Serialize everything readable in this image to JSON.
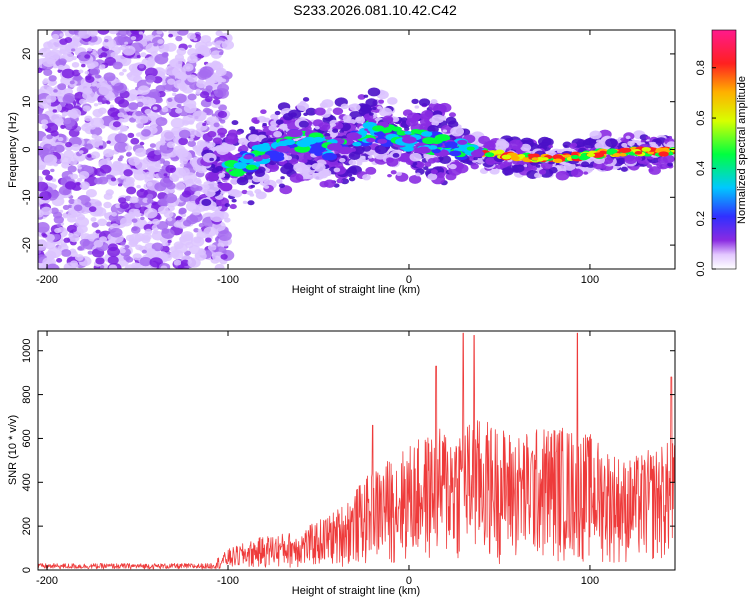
{
  "title": "S233.2026.081.10.42.C42",
  "colors": {
    "snr_line": "#ee3b3b",
    "axis": "#000000",
    "spec_base": "#8a2be2"
  },
  "chart_data": [
    {
      "type": "heatmap",
      "name": "spectrogram",
      "xlabel": "Height of straight line (km)",
      "ylabel": "Frequency (Hz)",
      "xlim": [
        -205,
        147
      ],
      "ylim": [
        -25,
        25
      ],
      "xticks": [
        -200,
        -100,
        0,
        100
      ],
      "yticks": [
        -20,
        -10,
        0,
        10,
        20
      ],
      "ridge": [
        {
          "x": -100,
          "y": -4
        },
        {
          "x": -80,
          "y": -1
        },
        {
          "x": -60,
          "y": 2
        },
        {
          "x": -40,
          "y": 0
        },
        {
          "x": -20,
          "y": 4
        },
        {
          "x": 0,
          "y": 2
        },
        {
          "x": 20,
          "y": 1
        },
        {
          "x": 40,
          "y": -0.5
        },
        {
          "x": 60,
          "y": -1.5
        },
        {
          "x": 80,
          "y": -2
        },
        {
          "x": 100,
          "y": -1
        },
        {
          "x": 120,
          "y": -0.5
        },
        {
          "x": 147,
          "y": -0.5
        }
      ],
      "colorbar": {
        "label": "Normalized spectral amplitude",
        "range": [
          0,
          0.95
        ],
        "ticks": [
          0.0,
          0.2,
          0.4,
          0.6,
          0.8
        ]
      }
    },
    {
      "type": "line",
      "name": "snr",
      "xlabel": "Height of straight line (km)",
      "ylabel": "SNR (10 * v/v)",
      "xlim": [
        -205,
        147
      ],
      "ylim": [
        0,
        1090
      ],
      "xticks": [
        -200,
        -100,
        0,
        100
      ],
      "yticks": [
        0,
        200,
        400,
        600,
        800,
        1000
      ],
      "envelope": [
        {
          "x": -205,
          "y": 15
        },
        {
          "x": -110,
          "y": 15
        },
        {
          "x": -100,
          "y": 80
        },
        {
          "x": -80,
          "y": 130
        },
        {
          "x": -60,
          "y": 150
        },
        {
          "x": -40,
          "y": 230
        },
        {
          "x": -20,
          "y": 380
        },
        {
          "x": 0,
          "y": 480
        },
        {
          "x": 20,
          "y": 550
        },
        {
          "x": 40,
          "y": 580
        },
        {
          "x": 60,
          "y": 520
        },
        {
          "x": 80,
          "y": 560
        },
        {
          "x": 100,
          "y": 520
        },
        {
          "x": 120,
          "y": 420
        },
        {
          "x": 147,
          "y": 500
        }
      ],
      "peaks": [
        {
          "x": -20,
          "y": 660
        },
        {
          "x": 15,
          "y": 930
        },
        {
          "x": 30,
          "y": 1080
        },
        {
          "x": 36,
          "y": 1070
        },
        {
          "x": 93,
          "y": 1080
        },
        {
          "x": 145,
          "y": 880
        }
      ]
    }
  ]
}
